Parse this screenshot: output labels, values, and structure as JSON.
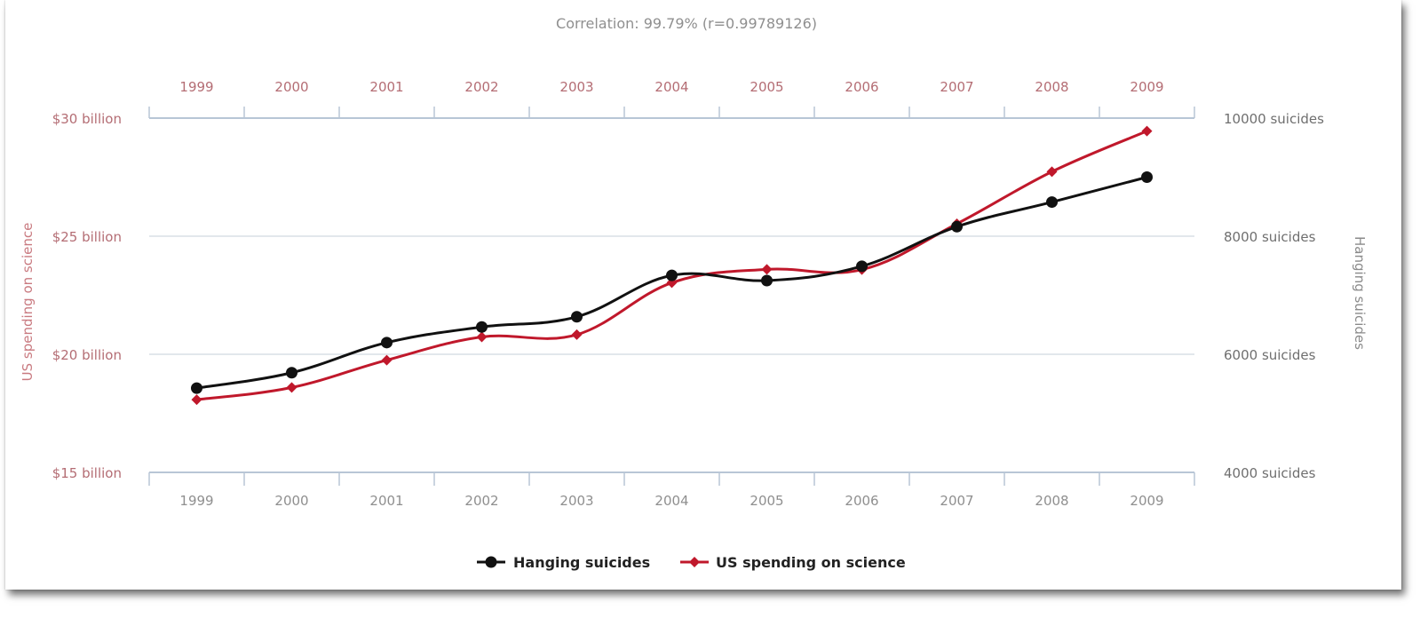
{
  "chart_data": {
    "type": "line",
    "title": "Correlation: 99.79% (r=0.99789126)",
    "x": [
      "1999",
      "2000",
      "2001",
      "2002",
      "2003",
      "2004",
      "2005",
      "2006",
      "2007",
      "2008",
      "2009"
    ],
    "left_axis": {
      "label": "US spending on science",
      "ticks": [
        "$15 billion",
        "$20 billion",
        "$25 billion",
        "$30 billion"
      ],
      "tick_values": [
        15,
        20,
        25,
        30
      ],
      "range": [
        15,
        30
      ]
    },
    "right_axis": {
      "label": "Hanging suicides",
      "ticks": [
        "4000 suicides",
        "6000 suicides",
        "8000 suicides",
        "10000 suicides"
      ],
      "tick_values": [
        4000,
        6000,
        8000,
        10000
      ],
      "range": [
        4000,
        10000
      ]
    },
    "series": [
      {
        "name": "Hanging suicides",
        "axis": "right",
        "color": "#111111",
        "marker": "circle",
        "values": [
          5427,
          5688,
          6198,
          6462,
          6635,
          7336,
          7248,
          7491,
          8161,
          8578,
          9000
        ]
      },
      {
        "name": "US spending on science",
        "axis": "left",
        "color": "#c0182b",
        "marker": "diamond",
        "values": [
          18.079,
          18.594,
          19.753,
          20.734,
          20.831,
          23.029,
          23.597,
          23.584,
          25.525,
          27.731,
          29.449
        ]
      }
    ],
    "legend": [
      "Hanging suicides",
      "US spending on science"
    ],
    "legend_position": "bottom-center",
    "grid": true
  }
}
